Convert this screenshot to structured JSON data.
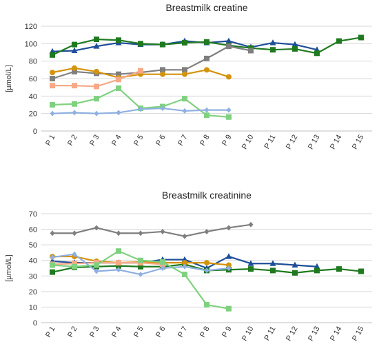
{
  "chart_data": [
    {
      "type": "line",
      "title": "Breastmilk creatine",
      "ylabel": "[µmol/L]",
      "xlabel": "",
      "categories": [
        "P 1",
        "P 2",
        "P 3",
        "P 4",
        "P 5",
        "P 6",
        "P 7",
        "P 8",
        "P 9",
        "P 10",
        "P 11",
        "P 12",
        "P 13",
        "P 14",
        "P 15"
      ],
      "ylim": [
        0,
        120
      ],
      "yticks": [
        0,
        20,
        40,
        60,
        80,
        100,
        120
      ],
      "grid": true,
      "legend": "none",
      "series": [
        {
          "color": "#1f4e99",
          "marker": "triangle",
          "values": [
            91,
            92,
            97,
            101,
            99,
            99,
            103,
            101,
            103,
            96,
            101,
            99,
            93,
            null,
            null
          ]
        },
        {
          "color": "#1f7a1f",
          "marker": "square",
          "values": [
            87,
            99,
            105,
            104,
            100,
            99,
            101,
            102,
            98,
            95,
            93,
            94,
            89,
            103,
            107
          ]
        },
        {
          "color": "#7f7f7f",
          "marker": "square",
          "values": [
            60,
            68,
            66,
            65,
            67,
            70,
            70,
            83,
            97,
            92,
            null,
            null,
            null,
            null,
            null
          ]
        },
        {
          "color": "#d4930c",
          "marker": "circle",
          "values": [
            67,
            72,
            68,
            61,
            65,
            65,
            65,
            70,
            62,
            null,
            null,
            null,
            null,
            null,
            null
          ]
        },
        {
          "color": "#f7a987",
          "marker": "square",
          "values": [
            52,
            52,
            51,
            59,
            69,
            null,
            null,
            null,
            null,
            null,
            null,
            null,
            null,
            null,
            null
          ]
        },
        {
          "color": "#7fd17f",
          "marker": "square",
          "values": [
            30,
            31,
            37,
            49,
            26,
            28,
            37,
            18,
            16,
            null,
            null,
            null,
            null,
            null,
            null
          ]
        },
        {
          "color": "#8fb0e0",
          "marker": "diamond",
          "values": [
            20,
            21,
            20,
            21,
            25,
            26,
            23,
            24,
            24,
            null,
            null,
            null,
            null,
            null,
            null
          ]
        }
      ]
    },
    {
      "type": "line",
      "title": "Breastmilk creatinine",
      "ylabel": "[µmol/L]",
      "xlabel": "",
      "categories": [
        "P 1",
        "P 2",
        "P 3",
        "P 4",
        "P 5",
        "P 6",
        "P 7",
        "P 8",
        "P 9",
        "P 10",
        "P 11",
        "P 12",
        "P 13",
        "P 14",
        "P 15"
      ],
      "ylim": [
        0,
        70
      ],
      "yticks": [
        0,
        10,
        20,
        30,
        40,
        50,
        60,
        70
      ],
      "grid": true,
      "legend": "none",
      "series": [
        {
          "color": "#7f7f7f",
          "marker": "diamond",
          "values": [
            57.5,
            57.5,
            61,
            57.5,
            57.5,
            58.5,
            55.5,
            58.5,
            61,
            63,
            null,
            null,
            null,
            null,
            null
          ]
        },
        {
          "color": "#1f4e99",
          "marker": "triangle",
          "values": [
            39.5,
            38.5,
            38.5,
            38.5,
            38.5,
            40.5,
            40.5,
            35,
            42.5,
            38,
            38,
            37,
            36,
            null,
            null
          ]
        },
        {
          "color": "#1f7a1f",
          "marker": "square",
          "values": [
            32.5,
            35.5,
            36,
            36.5,
            36,
            36,
            37.5,
            33.5,
            34,
            34.5,
            33.5,
            32,
            33.5,
            34.5,
            33
          ]
        },
        {
          "color": "#d4930c",
          "marker": "circle",
          "values": [
            42.5,
            42.5,
            39.5,
            38.5,
            39,
            38.5,
            38.5,
            38.5,
            37,
            null,
            null,
            null,
            null,
            null,
            null
          ]
        },
        {
          "color": "#f7a987",
          "marker": "square",
          "values": [
            37.5,
            38,
            38.5,
            38.5,
            38.5,
            37.5,
            null,
            null,
            null,
            null,
            null,
            null,
            null,
            null,
            null
          ]
        },
        {
          "color": "#8fb0e0",
          "marker": "diamond",
          "values": [
            42,
            44,
            33,
            34,
            31,
            35,
            36,
            33.5,
            35,
            null,
            null,
            null,
            null,
            null,
            null
          ]
        },
        {
          "color": "#7fd17f",
          "marker": "square",
          "values": [
            37,
            36,
            37,
            46,
            40,
            39,
            31,
            11.5,
            9,
            null,
            null,
            null,
            null,
            null,
            null
          ]
        }
      ]
    }
  ]
}
